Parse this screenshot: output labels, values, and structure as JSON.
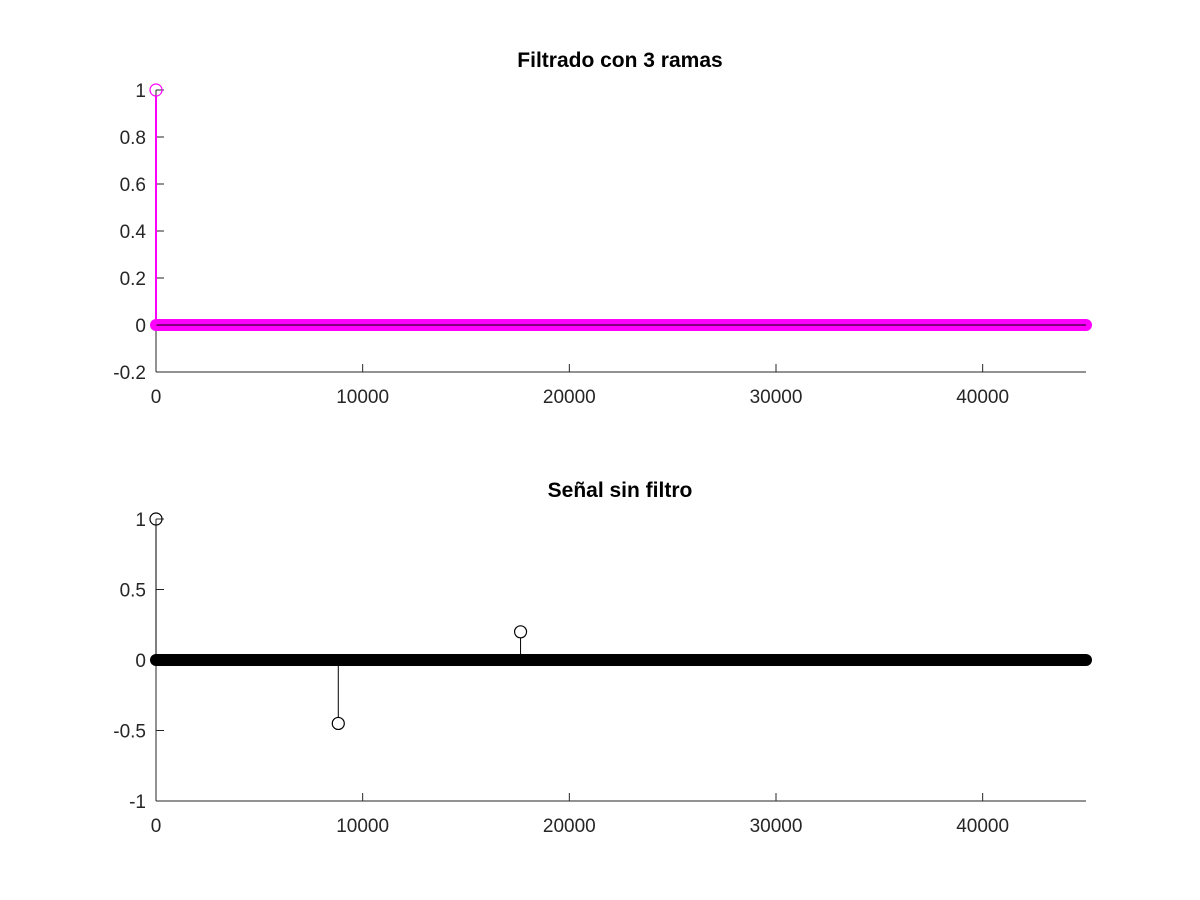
{
  "chart_data": [
    {
      "type": "stem",
      "title": "Filtrado con 3 ramas",
      "xlabel": "",
      "ylabel": "",
      "xlim": [
        0,
        45000
      ],
      "ylim": [
        -0.2,
        1
      ],
      "xticks": [
        0,
        10000,
        20000,
        30000,
        40000
      ],
      "xtick_labels": [
        "0",
        "10000",
        "20000",
        "30000",
        "40000"
      ],
      "yticks": [
        -0.2,
        0,
        0.2,
        0.4,
        0.6,
        0.8,
        1
      ],
      "ytick_labels": [
        "-0.2",
        "0",
        "0.2",
        "0.4",
        "0.6",
        "0.8",
        "1"
      ],
      "grid": false,
      "color": "#ff00ff",
      "marker": "circle",
      "baseline": 0,
      "dense_zero_range": [
        0,
        45000
      ],
      "nonzero_points": [
        {
          "x": 0,
          "y": 1
        }
      ]
    },
    {
      "type": "stem",
      "title": "Señal sin filtro",
      "xlabel": "",
      "ylabel": "",
      "xlim": [
        0,
        45000
      ],
      "ylim": [
        -1,
        1
      ],
      "xticks": [
        0,
        10000,
        20000,
        30000,
        40000
      ],
      "xtick_labels": [
        "0",
        "10000",
        "20000",
        "30000",
        "40000"
      ],
      "yticks": [
        -1,
        -0.5,
        0,
        0.5,
        1
      ],
      "ytick_labels": [
        "-1",
        "-0.5",
        "0",
        "0.5",
        "1"
      ],
      "grid": false,
      "color": "#000000",
      "marker": "circle",
      "baseline": 0,
      "dense_zero_range": [
        0,
        45000
      ],
      "nonzero_points": [
        {
          "x": 0,
          "y": 1
        },
        {
          "x": 8820,
          "y": -0.45
        },
        {
          "x": 17640,
          "y": 0.2
        }
      ]
    }
  ]
}
